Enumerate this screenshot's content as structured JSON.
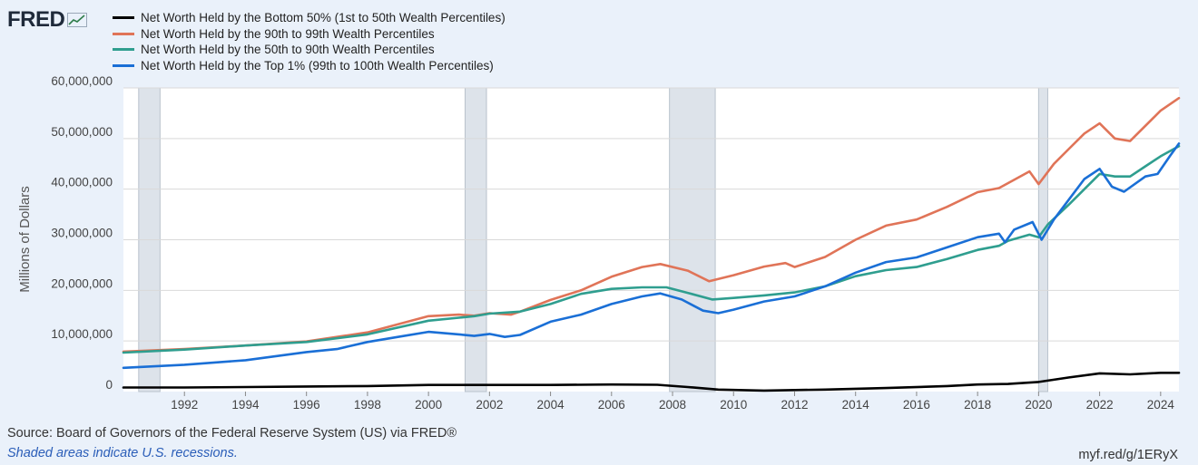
{
  "brand": {
    "logo_text": "FRED"
  },
  "source_text": "Source: Board of Governors of the Federal Reserve System (US) via FRED®",
  "note_text": "Shaded areas indicate U.S. recessions.",
  "short_url": "myf.red/g/1ERyX",
  "chart_data": {
    "type": "line",
    "title": "",
    "xlabel": "",
    "ylabel": "Millions of Dollars",
    "xlim": [
      1990.0,
      2024.6
    ],
    "ylim": [
      0,
      60000000
    ],
    "y_ticks": [
      0,
      10000000,
      20000000,
      30000000,
      40000000,
      50000000,
      60000000
    ],
    "y_tick_labels": [
      "0",
      "10,000,000",
      "20,000,000",
      "30,000,000",
      "40,000,000",
      "50,000,000",
      "60,000,000"
    ],
    "x_ticks": [
      1992,
      1994,
      1996,
      1998,
      2000,
      2002,
      2004,
      2006,
      2008,
      2010,
      2012,
      2014,
      2016,
      2018,
      2020,
      2022,
      2024
    ],
    "x_tick_labels": [
      "1992",
      "1994",
      "1996",
      "1998",
      "2000",
      "2002",
      "2004",
      "2006",
      "2008",
      "2010",
      "2012",
      "2014",
      "2016",
      "2018",
      "2020",
      "2022",
      "2024"
    ],
    "recessions": [
      [
        1990.5,
        1991.2
      ],
      [
        2001.2,
        2001.9
      ],
      [
        2007.9,
        2009.4
      ],
      [
        2020.0,
        2020.3
      ]
    ],
    "series": [
      {
        "name": "Net Worth Held by the Bottom 50% (1st to 50th Wealth Percentiles)",
        "color": "#000000",
        "points": [
          [
            1990.0,
            800000
          ],
          [
            1992,
            800000
          ],
          [
            1994,
            900000
          ],
          [
            1996,
            1000000
          ],
          [
            1998,
            1100000
          ],
          [
            2000,
            1300000
          ],
          [
            2002,
            1300000
          ],
          [
            2004,
            1300000
          ],
          [
            2006,
            1400000
          ],
          [
            2007.5,
            1350000
          ],
          [
            2008.5,
            900000
          ],
          [
            2009.5,
            400000
          ],
          [
            2011,
            200000
          ],
          [
            2013,
            400000
          ],
          [
            2015,
            700000
          ],
          [
            2017,
            1100000
          ],
          [
            2018,
            1400000
          ],
          [
            2019,
            1500000
          ],
          [
            2020,
            1900000
          ],
          [
            2021,
            2800000
          ],
          [
            2022,
            3600000
          ],
          [
            2023,
            3400000
          ],
          [
            2024,
            3700000
          ],
          [
            2024.6,
            3700000
          ]
        ]
      },
      {
        "name": "Net Worth Held by the 90th to 99th Wealth Percentiles",
        "color": "#e07458",
        "points": [
          [
            1990.0,
            7900000
          ],
          [
            1992,
            8400000
          ],
          [
            1994,
            9100000
          ],
          [
            1996,
            9900000
          ],
          [
            1998,
            11700000
          ],
          [
            1999,
            13300000
          ],
          [
            2000,
            14900000
          ],
          [
            2001,
            15200000
          ],
          [
            2001.5,
            15000000
          ],
          [
            2002,
            15500000
          ],
          [
            2002.7,
            15200000
          ],
          [
            2003,
            15800000
          ],
          [
            2004,
            18100000
          ],
          [
            2005,
            20000000
          ],
          [
            2006,
            22700000
          ],
          [
            2007,
            24600000
          ],
          [
            2007.6,
            25200000
          ],
          [
            2008.5,
            23900000
          ],
          [
            2009.2,
            21800000
          ],
          [
            2010,
            23000000
          ],
          [
            2011,
            24700000
          ],
          [
            2011.7,
            25400000
          ],
          [
            2012,
            24600000
          ],
          [
            2013,
            26600000
          ],
          [
            2014,
            30000000
          ],
          [
            2015,
            32800000
          ],
          [
            2016,
            34000000
          ],
          [
            2017,
            36500000
          ],
          [
            2018,
            39400000
          ],
          [
            2018.7,
            40200000
          ],
          [
            2019,
            41200000
          ],
          [
            2019.7,
            43500000
          ],
          [
            2020,
            41000000
          ],
          [
            2020.5,
            45000000
          ],
          [
            2021,
            48000000
          ],
          [
            2021.5,
            51000000
          ],
          [
            2022,
            53000000
          ],
          [
            2022.5,
            50000000
          ],
          [
            2023,
            49500000
          ],
          [
            2024,
            55500000
          ],
          [
            2024.6,
            58000000
          ]
        ]
      },
      {
        "name": "Net Worth Held by the 50th to 90th Wealth Percentiles",
        "color": "#2f9e8f",
        "points": [
          [
            1990.0,
            7700000
          ],
          [
            1992,
            8300000
          ],
          [
            1994,
            9100000
          ],
          [
            1996,
            9800000
          ],
          [
            1998,
            11300000
          ],
          [
            2000,
            14000000
          ],
          [
            2001,
            14600000
          ],
          [
            2001.5,
            14900000
          ],
          [
            2002,
            15400000
          ],
          [
            2003,
            15800000
          ],
          [
            2004,
            17300000
          ],
          [
            2005,
            19300000
          ],
          [
            2006,
            20300000
          ],
          [
            2007,
            20600000
          ],
          [
            2007.8,
            20600000
          ],
          [
            2008.5,
            19500000
          ],
          [
            2009.3,
            18200000
          ],
          [
            2010,
            18500000
          ],
          [
            2011,
            19000000
          ],
          [
            2012,
            19600000
          ],
          [
            2013,
            20800000
          ],
          [
            2014,
            22800000
          ],
          [
            2015,
            24000000
          ],
          [
            2016,
            24600000
          ],
          [
            2017,
            26200000
          ],
          [
            2018,
            28000000
          ],
          [
            2018.7,
            28800000
          ],
          [
            2019,
            29800000
          ],
          [
            2019.7,
            31000000
          ],
          [
            2020,
            30500000
          ],
          [
            2020.3,
            33000000
          ],
          [
            2021,
            37000000
          ],
          [
            2021.5,
            40000000
          ],
          [
            2022,
            43000000
          ],
          [
            2022.5,
            42500000
          ],
          [
            2023,
            42500000
          ],
          [
            2023.5,
            44500000
          ],
          [
            2024,
            46500000
          ],
          [
            2024.6,
            48500000
          ]
        ]
      },
      {
        "name": "Net Worth Held by the Top 1% (99th to 100th Wealth Percentiles)",
        "color": "#1a6fd6",
        "points": [
          [
            1990.0,
            4700000
          ],
          [
            1992,
            5300000
          ],
          [
            1994,
            6200000
          ],
          [
            1996,
            7800000
          ],
          [
            1997,
            8400000
          ],
          [
            1998,
            9800000
          ],
          [
            1999,
            10800000
          ],
          [
            2000,
            11800000
          ],
          [
            2001,
            11300000
          ],
          [
            2001.5,
            11000000
          ],
          [
            2002,
            11400000
          ],
          [
            2002.5,
            10800000
          ],
          [
            2003,
            11200000
          ],
          [
            2004,
            13800000
          ],
          [
            2005,
            15200000
          ],
          [
            2006,
            17300000
          ],
          [
            2007,
            18800000
          ],
          [
            2007.6,
            19400000
          ],
          [
            2008.3,
            18200000
          ],
          [
            2009,
            16000000
          ],
          [
            2009.5,
            15500000
          ],
          [
            2010,
            16200000
          ],
          [
            2011,
            17800000
          ],
          [
            2012,
            18800000
          ],
          [
            2013,
            20800000
          ],
          [
            2014,
            23500000
          ],
          [
            2015,
            25600000
          ],
          [
            2016,
            26500000
          ],
          [
            2017,
            28500000
          ],
          [
            2018,
            30500000
          ],
          [
            2018.7,
            31200000
          ],
          [
            2018.9,
            29500000
          ],
          [
            2019.2,
            32000000
          ],
          [
            2019.8,
            33500000
          ],
          [
            2020.1,
            30000000
          ],
          [
            2020.5,
            34000000
          ],
          [
            2021,
            38000000
          ],
          [
            2021.5,
            42000000
          ],
          [
            2022,
            44000000
          ],
          [
            2022.4,
            40500000
          ],
          [
            2022.8,
            39500000
          ],
          [
            2023.5,
            42500000
          ],
          [
            2023.9,
            43000000
          ],
          [
            2024.3,
            46500000
          ],
          [
            2024.6,
            49000000
          ]
        ]
      }
    ]
  }
}
